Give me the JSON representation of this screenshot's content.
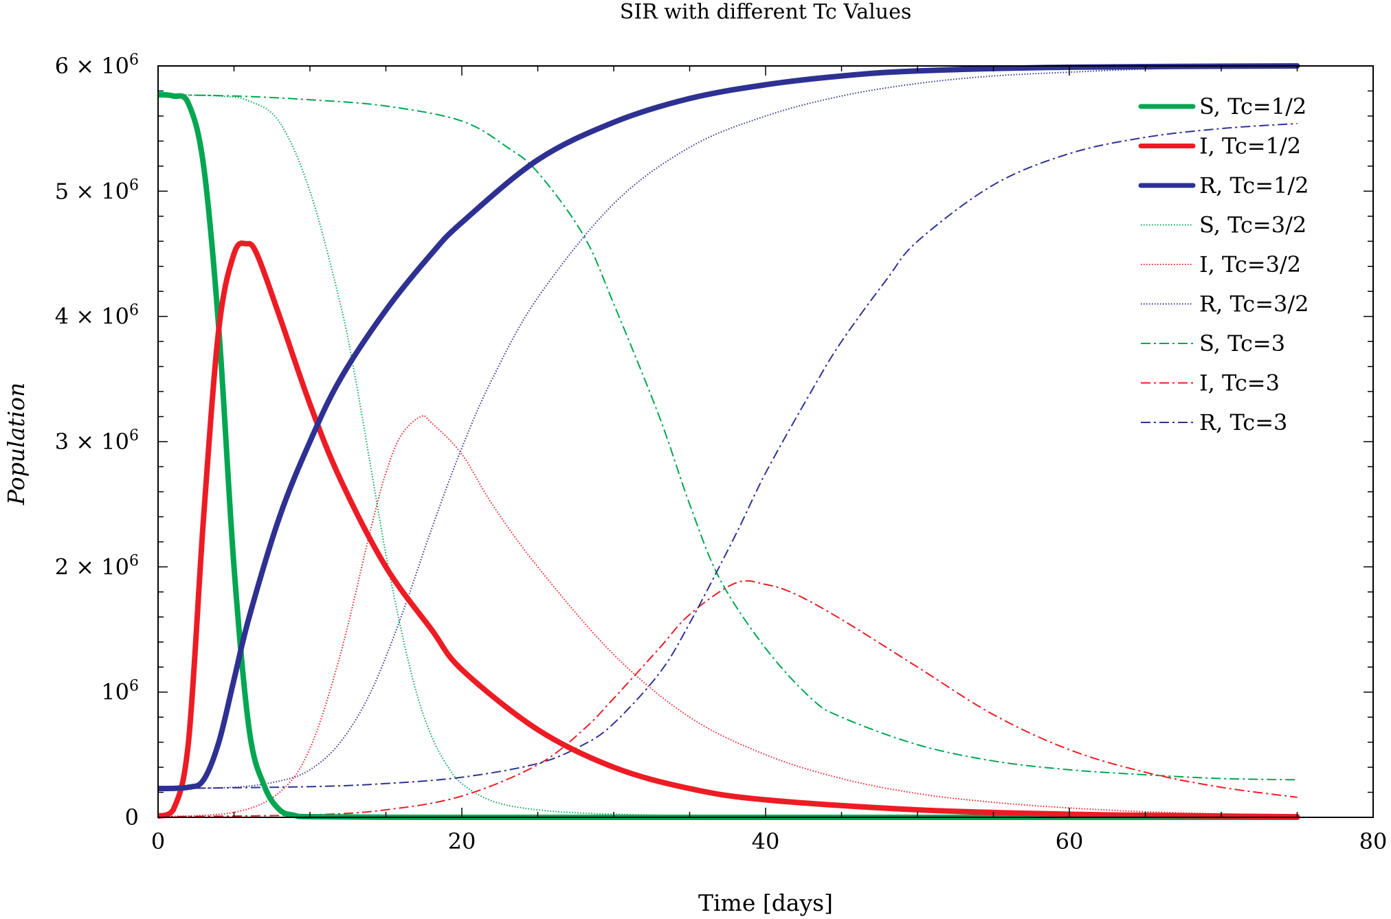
{
  "chart_data": {
    "type": "line",
    "title": "SIR with different Tc Values",
    "xlabel": "Time [days]",
    "ylabel": "Population",
    "xlim": [
      0,
      80
    ],
    "ylim": [
      0,
      6000000
    ],
    "x_ticks": [
      0,
      20,
      40,
      60,
      80
    ],
    "x_tick_labels": [
      "0",
      "20",
      "40",
      "60",
      "80"
    ],
    "y_ticks": [
      0,
      1000000,
      2000000,
      3000000,
      4000000,
      5000000,
      6000000
    ],
    "y_tick_labels": [
      {
        "mantissa": "",
        "exponent": "",
        "plain": "0"
      },
      {
        "mantissa": "",
        "exponent": "6",
        "plain": "10"
      },
      {
        "mantissa": "2",
        "exponent": "6",
        "plain": ""
      },
      {
        "mantissa": "3",
        "exponent": "6",
        "plain": ""
      },
      {
        "mantissa": "4",
        "exponent": "6",
        "plain": ""
      },
      {
        "mantissa": "5",
        "exponent": "6",
        "plain": ""
      },
      {
        "mantissa": "6",
        "exponent": "6",
        "plain": ""
      }
    ],
    "grid": false,
    "legend_position": "top-right",
    "colors": {
      "green": "#00a651",
      "red": "#ed1c24",
      "blue": "#2e3192"
    },
    "series": [
      {
        "name": "S, Tc=1/2",
        "color": "#00a651",
        "style": "solid",
        "width": "thick",
        "points": [
          [
            0,
            5770000
          ],
          [
            1,
            5760000
          ],
          [
            2,
            5700000
          ],
          [
            3,
            5200000
          ],
          [
            4,
            3900000
          ],
          [
            5,
            2000000
          ],
          [
            6,
            700000
          ],
          [
            7,
            250000
          ],
          [
            8,
            60000
          ],
          [
            9,
            15000
          ],
          [
            10,
            5000
          ],
          [
            15,
            1000
          ],
          [
            20,
            0
          ],
          [
            40,
            0
          ],
          [
            60,
            0
          ],
          [
            75,
            0
          ]
        ]
      },
      {
        "name": "I, Tc=1/2",
        "color": "#ed1c24",
        "style": "solid",
        "width": "thick",
        "points": [
          [
            0,
            10000
          ],
          [
            1,
            60000
          ],
          [
            2,
            600000
          ],
          [
            3,
            2400000
          ],
          [
            4,
            3900000
          ],
          [
            5,
            4500000
          ],
          [
            5.8,
            4580000
          ],
          [
            6.5,
            4500000
          ],
          [
            8,
            4000000
          ],
          [
            10,
            3300000
          ],
          [
            12,
            2700000
          ],
          [
            15,
            2000000
          ],
          [
            18,
            1500000
          ],
          [
            20,
            1180000
          ],
          [
            25,
            700000
          ],
          [
            30,
            400000
          ],
          [
            35,
            230000
          ],
          [
            40,
            140000
          ],
          [
            50,
            60000
          ],
          [
            60,
            25000
          ],
          [
            70,
            10000
          ],
          [
            75,
            5000
          ]
        ]
      },
      {
        "name": "R, Tc=1/2",
        "color": "#2e3192",
        "style": "solid",
        "width": "thick",
        "points": [
          [
            0,
            230000
          ],
          [
            2,
            240000
          ],
          [
            3,
            300000
          ],
          [
            4,
            600000
          ],
          [
            5,
            1100000
          ],
          [
            6,
            1600000
          ],
          [
            8,
            2400000
          ],
          [
            10,
            3000000
          ],
          [
            12,
            3500000
          ],
          [
            15,
            4050000
          ],
          [
            18,
            4500000
          ],
          [
            20,
            4750000
          ],
          [
            25,
            5250000
          ],
          [
            30,
            5550000
          ],
          [
            35,
            5740000
          ],
          [
            40,
            5850000
          ],
          [
            45,
            5920000
          ],
          [
            50,
            5960000
          ],
          [
            60,
            5990000
          ],
          [
            75,
            6000000
          ]
        ]
      },
      {
        "name": "S, Tc=3/2",
        "color": "#00a651",
        "style": "dotted",
        "width": "thin",
        "points": [
          [
            0,
            5770000
          ],
          [
            4,
            5760000
          ],
          [
            6,
            5720000
          ],
          [
            8,
            5550000
          ],
          [
            10,
            5000000
          ],
          [
            12,
            4100000
          ],
          [
            13,
            3500000
          ],
          [
            14,
            2800000
          ],
          [
            15,
            2100000
          ],
          [
            16,
            1500000
          ],
          [
            17,
            1000000
          ],
          [
            18,
            650000
          ],
          [
            19,
            420000
          ],
          [
            20,
            270000
          ],
          [
            22,
            130000
          ],
          [
            25,
            60000
          ],
          [
            30,
            25000
          ],
          [
            40,
            8000
          ],
          [
            50,
            3000
          ],
          [
            75,
            0
          ]
        ]
      },
      {
        "name": "I, Tc=3/2",
        "color": "#ed1c24",
        "style": "dotted",
        "width": "thin",
        "points": [
          [
            0,
            5000
          ],
          [
            5,
            40000
          ],
          [
            8,
            200000
          ],
          [
            10,
            550000
          ],
          [
            12,
            1300000
          ],
          [
            14,
            2300000
          ],
          [
            15,
            2750000
          ],
          [
            16,
            3050000
          ],
          [
            17.3,
            3200000
          ],
          [
            18,
            3150000
          ],
          [
            20,
            2900000
          ],
          [
            22,
            2500000
          ],
          [
            25,
            2000000
          ],
          [
            30,
            1300000
          ],
          [
            35,
            800000
          ],
          [
            40,
            500000
          ],
          [
            45,
            310000
          ],
          [
            50,
            190000
          ],
          [
            55,
            120000
          ],
          [
            60,
            75000
          ],
          [
            65,
            45000
          ],
          [
            70,
            28000
          ],
          [
            75,
            18000
          ]
        ]
      },
      {
        "name": "R, Tc=3/2",
        "color": "#2e3192",
        "style": "dotted",
        "width": "thin",
        "points": [
          [
            0,
            230000
          ],
          [
            5,
            240000
          ],
          [
            8,
            290000
          ],
          [
            10,
            380000
          ],
          [
            12,
            600000
          ],
          [
            14,
            1000000
          ],
          [
            16,
            1600000
          ],
          [
            18,
            2300000
          ],
          [
            20,
            2950000
          ],
          [
            22,
            3500000
          ],
          [
            25,
            4150000
          ],
          [
            30,
            4900000
          ],
          [
            35,
            5350000
          ],
          [
            40,
            5600000
          ],
          [
            45,
            5760000
          ],
          [
            50,
            5860000
          ],
          [
            55,
            5920000
          ],
          [
            60,
            5950000
          ],
          [
            65,
            5975000
          ],
          [
            70,
            5985000
          ],
          [
            75,
            5990000
          ]
        ]
      },
      {
        "name": "S, Tc=3",
        "color": "#00a651",
        "style": "dashdot",
        "width": "thin",
        "points": [
          [
            0,
            5770000
          ],
          [
            5,
            5760000
          ],
          [
            10,
            5730000
          ],
          [
            15,
            5680000
          ],
          [
            20,
            5560000
          ],
          [
            23,
            5350000
          ],
          [
            25,
            5150000
          ],
          [
            28,
            4650000
          ],
          [
            30,
            4100000
          ],
          [
            33,
            3200000
          ],
          [
            35,
            2500000
          ],
          [
            37,
            1900000
          ],
          [
            40,
            1350000
          ],
          [
            43,
            950000
          ],
          [
            45,
            800000
          ],
          [
            50,
            580000
          ],
          [
            55,
            450000
          ],
          [
            60,
            380000
          ],
          [
            65,
            340000
          ],
          [
            70,
            310000
          ],
          [
            75,
            300000
          ]
        ]
      },
      {
        "name": "I, Tc=3",
        "color": "#ed1c24",
        "style": "dashdot",
        "width": "thin",
        "points": [
          [
            0,
            5000
          ],
          [
            10,
            20000
          ],
          [
            15,
            60000
          ],
          [
            20,
            170000
          ],
          [
            25,
            420000
          ],
          [
            28,
            700000
          ],
          [
            30,
            950000
          ],
          [
            33,
            1350000
          ],
          [
            35,
            1620000
          ],
          [
            38,
            1870000
          ],
          [
            40,
            1860000
          ],
          [
            42,
            1780000
          ],
          [
            45,
            1580000
          ],
          [
            50,
            1200000
          ],
          [
            55,
            820000
          ],
          [
            60,
            540000
          ],
          [
            65,
            360000
          ],
          [
            70,
            240000
          ],
          [
            75,
            160000
          ]
        ]
      },
      {
        "name": "R, Tc=3",
        "color": "#2e3192",
        "style": "dashdot",
        "width": "thin",
        "points": [
          [
            0,
            230000
          ],
          [
            10,
            245000
          ],
          [
            15,
            270000
          ],
          [
            20,
            320000
          ],
          [
            25,
            430000
          ],
          [
            28,
            580000
          ],
          [
            30,
            750000
          ],
          [
            33,
            1150000
          ],
          [
            35,
            1550000
          ],
          [
            38,
            2250000
          ],
          [
            40,
            2750000
          ],
          [
            43,
            3400000
          ],
          [
            45,
            3800000
          ],
          [
            48,
            4300000
          ],
          [
            50,
            4600000
          ],
          [
            55,
            5050000
          ],
          [
            60,
            5300000
          ],
          [
            65,
            5430000
          ],
          [
            70,
            5500000
          ],
          [
            75,
            5540000
          ]
        ]
      }
    ]
  }
}
